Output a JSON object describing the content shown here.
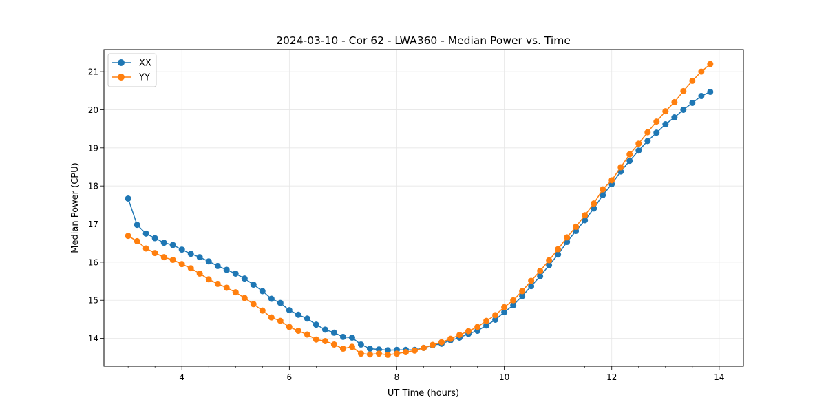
{
  "chart_data": {
    "type": "line",
    "title": "2024-03-10 - Cor 62 - LWA360 - Median Power vs. Time",
    "xlabel": "UT Time (hours)",
    "ylabel": "Median Power (CPU)",
    "xlim": [
      2.55,
      14.45
    ],
    "ylim": [
      13.27,
      21.58
    ],
    "xticks": [
      4,
      6,
      8,
      10,
      12,
      14
    ],
    "xtick_labels": [
      "4",
      "6",
      "8",
      "10",
      "12",
      "14"
    ],
    "xminor_step": 0.5,
    "yticks": [
      14,
      15,
      16,
      17,
      18,
      19,
      20,
      21
    ],
    "ytick_labels": [
      "14",
      "15",
      "16",
      "17",
      "18",
      "19",
      "20",
      "21"
    ],
    "grid": true,
    "legend_position": "top-left",
    "x": [
      3.0,
      3.167,
      3.333,
      3.5,
      3.667,
      3.833,
      4.0,
      4.167,
      4.333,
      4.5,
      4.667,
      4.833,
      5.0,
      5.167,
      5.333,
      5.5,
      5.667,
      5.833,
      6.0,
      6.167,
      6.333,
      6.5,
      6.667,
      6.833,
      7.0,
      7.167,
      7.333,
      7.5,
      7.667,
      7.833,
      8.0,
      8.167,
      8.333,
      8.5,
      8.667,
      8.833,
      9.0,
      9.167,
      9.333,
      9.5,
      9.667,
      9.833,
      10.0,
      10.167,
      10.333,
      10.5,
      10.667,
      10.833,
      11.0,
      11.167,
      11.333,
      11.5,
      11.667,
      11.833,
      12.0,
      12.167,
      12.333,
      12.5,
      12.667,
      12.833,
      13.0,
      13.167,
      13.333,
      13.5,
      13.667,
      13.833
    ],
    "series": [
      {
        "name": "XX",
        "color": "#1f77b4",
        "values": [
          17.67,
          16.98,
          16.75,
          16.63,
          16.51,
          16.45,
          16.33,
          16.22,
          16.13,
          16.02,
          15.9,
          15.8,
          15.7,
          15.57,
          15.41,
          15.24,
          15.04,
          14.93,
          14.74,
          14.62,
          14.52,
          14.36,
          14.23,
          14.15,
          14.04,
          14.02,
          13.84,
          13.73,
          13.71,
          13.69,
          13.7,
          13.7,
          13.7,
          13.75,
          13.82,
          13.86,
          13.95,
          14.02,
          14.12,
          14.2,
          14.34,
          14.49,
          14.69,
          14.87,
          15.11,
          15.37,
          15.63,
          15.92,
          16.2,
          16.53,
          16.82,
          17.1,
          17.41,
          17.76,
          18.05,
          18.38,
          18.66,
          18.93,
          19.18,
          19.4,
          19.62,
          19.8,
          20.0,
          20.18,
          20.36,
          20.47
        ]
      },
      {
        "name": "YY",
        "color": "#ff7f0e",
        "values": [
          16.69,
          16.55,
          16.36,
          16.24,
          16.13,
          16.06,
          15.95,
          15.84,
          15.7,
          15.55,
          15.43,
          15.33,
          15.21,
          15.06,
          14.9,
          14.73,
          14.55,
          14.46,
          14.3,
          14.2,
          14.1,
          13.97,
          13.93,
          13.84,
          13.73,
          13.78,
          13.6,
          13.58,
          13.6,
          13.57,
          13.6,
          13.64,
          13.68,
          13.75,
          13.83,
          13.9,
          13.99,
          14.09,
          14.19,
          14.3,
          14.46,
          14.61,
          14.82,
          15.0,
          15.24,
          15.51,
          15.77,
          16.05,
          16.34,
          16.65,
          16.93,
          17.23,
          17.54,
          17.91,
          18.15,
          18.49,
          18.83,
          19.11,
          19.41,
          19.69,
          19.96,
          20.2,
          20.49,
          20.76,
          21.0,
          21.2
        ]
      }
    ]
  }
}
